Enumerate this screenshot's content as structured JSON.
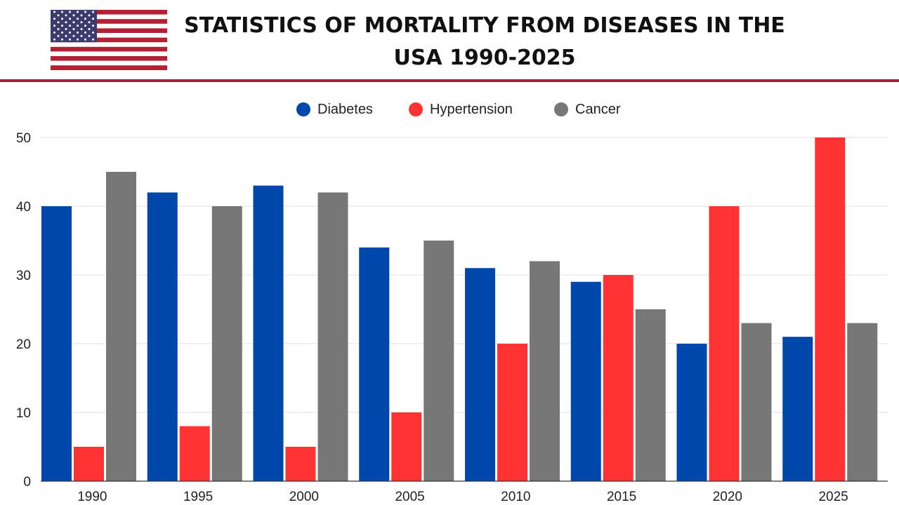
{
  "header": {
    "title": "STATISTICS OF MORTALITY FROM DISEASES IN THE USA 1990-2025",
    "flag": "usa-flag-icon"
  },
  "colors": {
    "diabetes": "#0047ab",
    "hypertension": "#ff3333",
    "cancer": "#777777",
    "divider": "#a3203f",
    "grid": "#e2e2e2"
  },
  "chart_data": {
    "type": "bar",
    "title": "STATISTICS OF MORTALITY FROM DISEASES IN THE USA 1990-2025",
    "xlabel": "",
    "ylabel": "",
    "categories": [
      "1990",
      "1995",
      "2000",
      "2005",
      "2010",
      "2015",
      "2020",
      "2025"
    ],
    "series": [
      {
        "name": "Diabetes",
        "color": "#0047ab",
        "values": [
          40,
          42,
          43,
          34,
          31,
          29,
          20,
          21
        ]
      },
      {
        "name": "Hypertension",
        "color": "#ff3333",
        "values": [
          5,
          8,
          5,
          10,
          20,
          30,
          40,
          50
        ]
      },
      {
        "name": "Cancer",
        "color": "#777777",
        "values": [
          45,
          40,
          42,
          35,
          32,
          25,
          23,
          23
        ]
      }
    ],
    "ylim": [
      0,
      50
    ],
    "yticks": [
      "0",
      "10",
      "20",
      "30",
      "40",
      "50"
    ],
    "grid": true,
    "legend_position": "top-center"
  }
}
